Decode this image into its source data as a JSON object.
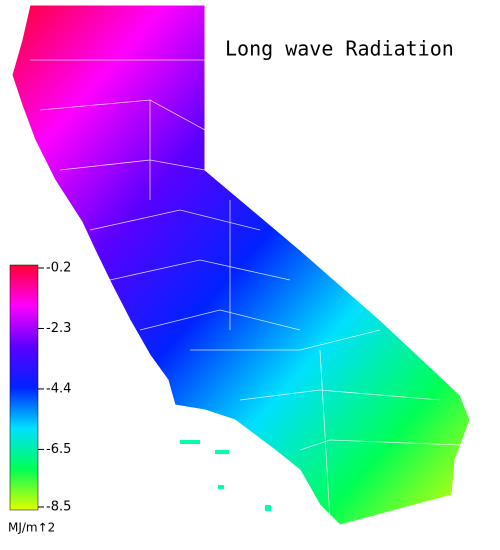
{
  "title": "Long wave Radiation",
  "colorbar": {
    "ticks": [
      -0.2,
      -2.3,
      -4.4,
      -6.5,
      -8.5
    ],
    "unit": "MJ/m↑2",
    "colors": [
      "#ff0033",
      "#ff00ff",
      "#5a00ff",
      "#0022ff",
      "#00e0ff",
      "#00ff55",
      "#e0ff00"
    ]
  }
}
